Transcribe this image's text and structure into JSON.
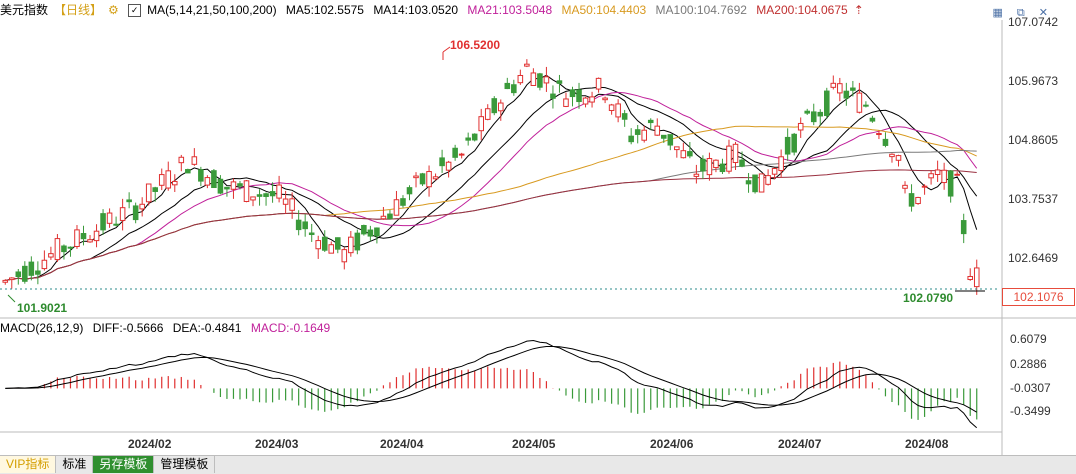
{
  "legend": {
    "title": "美元指数",
    "period": "【日线】",
    "ma_params": "MA(5,14,21,50,100,200)",
    "ma5": "MA5:102.5575",
    "ma14": "MA14:103.0520",
    "ma21": "MA21:103.5048",
    "ma50": "MA50:104.4403",
    "ma100": "MA100:104.7692",
    "ma200": "MA200:104.0675"
  },
  "price_axis": [
    "107.0742",
    "105.9673",
    "104.8605",
    "103.7537",
    "102.6469"
  ],
  "current_price": "102.1076",
  "annotations": {
    "high": "106.5200",
    "low_left": "101.9021",
    "low_right": "102.0790"
  },
  "macd_legend": {
    "params": "MACD(26,12,9)",
    "diff": "DIFF:-0.5666",
    "dea": "DEA:-0.4841",
    "macd": "MACD:-0.1649"
  },
  "macd_axis": [
    "0.6079",
    "0.2886",
    "-0.0307",
    "-0.3499"
  ],
  "dates": [
    "2024/02",
    "2024/03",
    "2024/04",
    "2024/05",
    "2024/06",
    "2024/07",
    "2024/08"
  ],
  "tabs": [
    "VIP指标",
    "标准",
    "另存模板",
    "管理模板"
  ],
  "colors": {
    "up": "#e03030",
    "down": "#3a9a3a",
    "ma5": "#000000",
    "ma14": "#000000",
    "ma21": "#c0209a",
    "ma50": "#d89a20",
    "ma100": "#7a7a7a",
    "ma200": "#9a3040"
  }
}
